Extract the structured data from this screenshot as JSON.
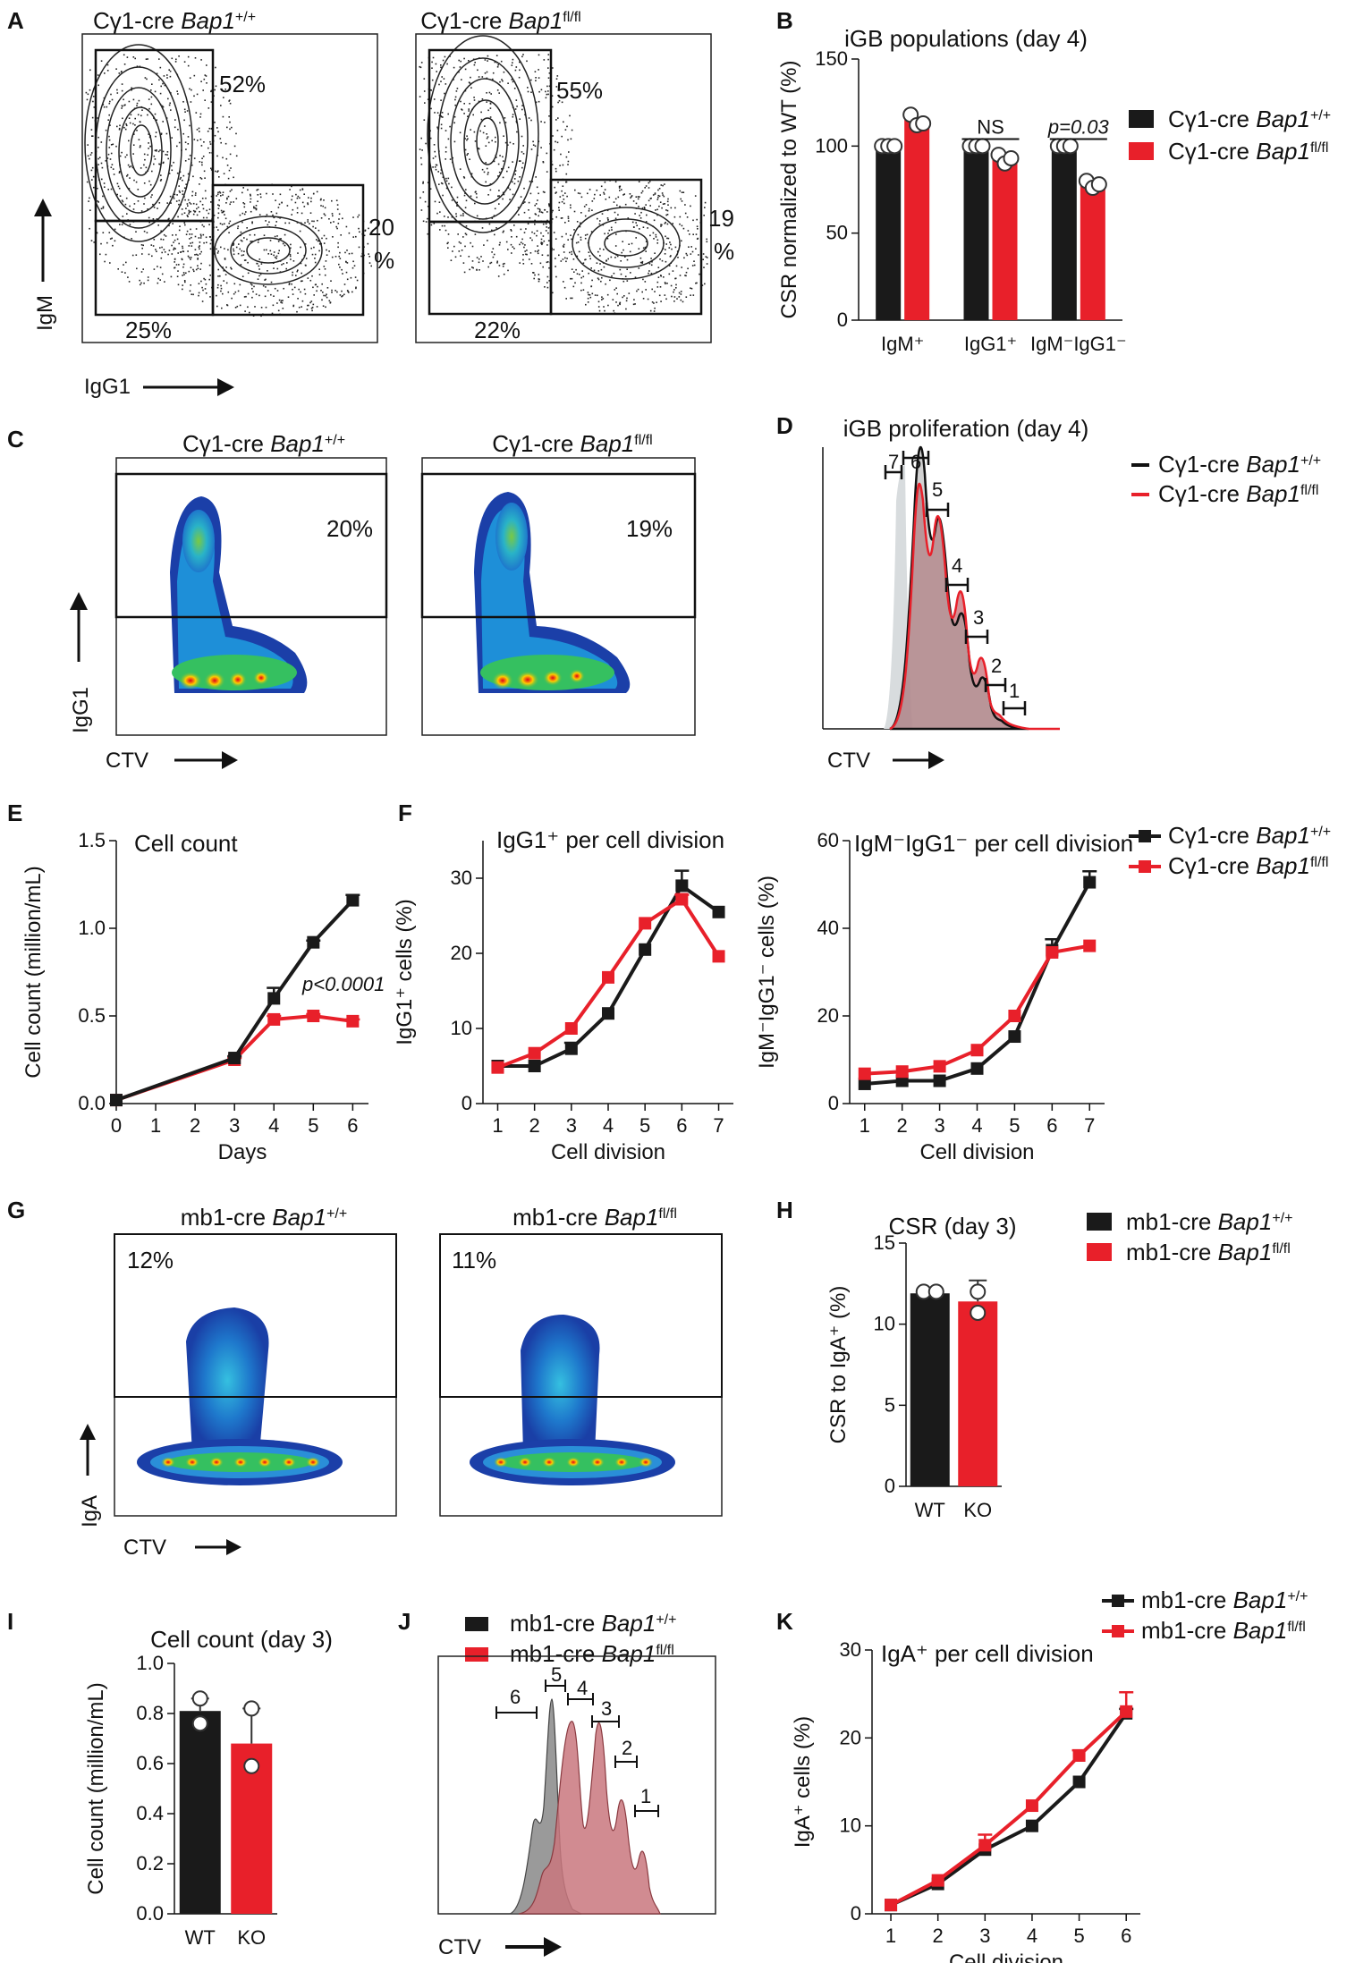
{
  "colors": {
    "wt": "#1a1a1a",
    "ko": "#e8202a",
    "wt_fill": "#9a9a9a",
    "ko_fill": "#c9777e"
  },
  "panels": {
    "A": {
      "label": "A",
      "title_wt_prefix": "Cγ1-cre ",
      "title_wt_gene": "Bap1",
      "title_wt_sup": "+/+",
      "title_ko_prefix": "Cγ1-cre ",
      "title_ko_gene": "Bap1",
      "title_ko_sup": "fl/fl",
      "ylabel": "IgM",
      "xlabel": "IgG1",
      "wt_gates": {
        "igm": "52%",
        "igg1_a": "20",
        "igg1_b": "%",
        "dn": "25%"
      },
      "ko_gates": {
        "igm": "55%",
        "igg1_a": "19",
        "igg1_b": "%",
        "dn": "22%"
      }
    },
    "C": {
      "label": "C",
      "title_wt_prefix": "Cγ1-cre ",
      "title_wt_gene": "Bap1",
      "title_wt_sup": "+/+",
      "title_ko_prefix": "Cγ1-cre ",
      "title_ko_gene": "Bap1",
      "title_ko_sup": "fl/fl",
      "ylabel": "IgG1",
      "xlabel": "CTV",
      "wt_pct": "20%",
      "ko_pct": "19%"
    },
    "D": {
      "label": "D",
      "title": "iGB proliferation (day 4)",
      "xlabel": "CTV",
      "legend": [
        {
          "prefix": "Cγ1-cre ",
          "gene": "Bap1",
          "sup": "+/+"
        },
        {
          "prefix": "Cγ1-cre ",
          "gene": "Bap1",
          "sup": "fl/fl"
        }
      ],
      "division_labels": [
        "7",
        "6",
        "5",
        "4",
        "3",
        "2",
        "1"
      ]
    },
    "G": {
      "label": "G",
      "title_wt_prefix": "mb1-cre ",
      "title_wt_gene": "Bap1",
      "title_wt_sup": "+/+",
      "title_ko_prefix": "mb1-cre ",
      "title_ko_gene": "Bap1",
      "title_ko_sup": "fl/fl",
      "ylabel": "IgA",
      "xlabel": "CTV",
      "wt_pct": "12%",
      "ko_pct": "11%"
    },
    "J": {
      "label": "J",
      "xlabel": "CTV",
      "legend": [
        {
          "prefix": "mb1-cre ",
          "gene": "Bap1",
          "sup": "+/+"
        },
        {
          "prefix": "mb1-cre ",
          "gene": "Bap1",
          "sup": "fl/fl"
        }
      ],
      "division_labels": [
        "6",
        "5",
        "4",
        "3",
        "2",
        "1"
      ]
    }
  },
  "chart_data": [
    {
      "id": "B",
      "label": "B",
      "type": "bar",
      "title": "iGB populations (day 4)",
      "ylabel": "CSR normalized to WT (%)",
      "categories": [
        "IgM⁺",
        "IgG1⁺",
        "IgM⁻IgG1⁻"
      ],
      "ylim": [
        0,
        150
      ],
      "yticks": [
        0,
        50,
        100,
        150
      ],
      "series": [
        {
          "name": "Cγ1-cre Bap1+/+",
          "values": [
            100,
            100,
            100
          ],
          "points": [
            [
              100,
              100,
              100
            ],
            [
              100,
              100,
              100
            ],
            [
              100,
              100,
              100
            ]
          ]
        },
        {
          "name": "Cγ1-cre Bap1fl/fl",
          "values": [
            115,
            92,
            78
          ],
          "points": [
            [
              118,
              112,
              113
            ],
            [
              95,
              90,
              93
            ],
            [
              80,
              76,
              78
            ]
          ]
        }
      ],
      "annotations": [
        "NS",
        "p=0.03"
      ],
      "legend_prefix": "Cγ1-cre ",
      "legend_gene": "Bap1",
      "legend_sups": [
        "+/+",
        "fl/fl"
      ]
    },
    {
      "id": "E",
      "label": "E",
      "type": "line",
      "title": "Cell count",
      "xlabel": "Days",
      "ylabel": "Cell count (million/mL)",
      "x": [
        0,
        3,
        4,
        5,
        6
      ],
      "xlim": [
        0,
        6.4
      ],
      "xticks": [
        0,
        1,
        2,
        3,
        4,
        5,
        6
      ],
      "ylim": [
        0,
        1.5
      ],
      "yticks": [
        0.0,
        0.5,
        1.0,
        1.5
      ],
      "series": [
        {
          "name": "Cγ1-cre Bap1+/+",
          "values": [
            0.02,
            0.26,
            0.6,
            0.92,
            1.16
          ],
          "err": [
            0,
            0.01,
            0.06,
            0.01,
            0.03
          ]
        },
        {
          "name": "Cγ1-cre Bap1fl/fl",
          "values": [
            0.02,
            0.25,
            0.48,
            0.5,
            0.47
          ],
          "err": [
            0,
            0.01,
            0.02,
            0.01,
            0.01
          ]
        }
      ],
      "annotation": "p<0.0001"
    },
    {
      "id": "F1",
      "label": "F",
      "type": "line",
      "title": "IgG1⁺ per cell division",
      "xlabel": "Cell division",
      "ylabel": "IgG1⁺ cells (%)",
      "x": [
        1,
        2,
        3,
        4,
        5,
        6,
        7
      ],
      "xlim": [
        0.6,
        7.4
      ],
      "xticks": [
        1,
        2,
        3,
        4,
        5,
        6,
        7
      ],
      "ylim": [
        0,
        35
      ],
      "yticks": [
        0,
        10,
        20,
        30
      ],
      "series": [
        {
          "name": "Cγ1-cre Bap1+/+",
          "values": [
            5,
            5,
            7.3,
            12,
            20.5,
            29,
            25.5
          ],
          "err": [
            0,
            0,
            0.8,
            0,
            0,
            2,
            0
          ]
        },
        {
          "name": "Cγ1-cre Bap1fl/fl",
          "values": [
            4.8,
            6.7,
            10,
            16.8,
            24,
            27.2,
            19.6
          ],
          "err": [
            0,
            0,
            0,
            0,
            0,
            0.6,
            0
          ]
        }
      ]
    },
    {
      "id": "F2",
      "label": "",
      "type": "line",
      "title": "IgM⁻IgG1⁻ per cell division",
      "xlabel": "Cell division",
      "ylabel": "IgM⁻IgG1⁻ cells (%)",
      "x": [
        1,
        2,
        3,
        4,
        5,
        6,
        7
      ],
      "xlim": [
        0.6,
        7.4
      ],
      "xticks": [
        1,
        2,
        3,
        4,
        5,
        6,
        7
      ],
      "ylim": [
        0,
        60
      ],
      "yticks": [
        0,
        20,
        40,
        60
      ],
      "series": [
        {
          "name": "Cγ1-cre Bap1+/+",
          "values": [
            4.5,
            5.2,
            5.2,
            8,
            15.3,
            35,
            50.5
          ],
          "err": [
            0,
            0,
            0,
            0,
            0,
            2.5,
            2.5
          ]
        },
        {
          "name": "Cγ1-cre Bap1fl/fl",
          "values": [
            6.8,
            7.3,
            8.5,
            12.2,
            20,
            34.5,
            36
          ],
          "err": [
            0,
            0,
            0,
            0,
            0,
            0,
            0
          ]
        }
      ],
      "legend_prefix": "Cγ1-cre ",
      "legend_gene": "Bap1",
      "legend_sups": [
        "+/+",
        "fl/fl"
      ]
    },
    {
      "id": "H",
      "label": "H",
      "type": "bar",
      "title": "CSR (day 3)",
      "ylabel": "CSR to IgA⁺ (%)",
      "categories": [
        "WT",
        "KO"
      ],
      "ylim": [
        0,
        15
      ],
      "yticks": [
        0,
        5,
        10,
        15
      ],
      "values": [
        11.9,
        11.4
      ],
      "err": [
        0.1,
        1.3
      ],
      "points": [
        [
          12,
          12
        ],
        [
          12,
          10.7
        ]
      ],
      "legend_prefix": "mb1-cre ",
      "legend_gene": "Bap1",
      "legend_sups": [
        "+/+",
        "fl/fl"
      ]
    },
    {
      "id": "I",
      "label": "I",
      "type": "bar",
      "title": "Cell count (day 3)",
      "ylabel": "Cell count (million/mL)",
      "categories": [
        "WT",
        "KO"
      ],
      "ylim": [
        0,
        1.0
      ],
      "yticks": [
        0.0,
        0.2,
        0.4,
        0.6,
        0.8,
        1.0
      ],
      "values": [
        0.81,
        0.68
      ],
      "err": [
        0.05,
        0.14
      ],
      "points": [
        [
          0.86,
          0.76
        ],
        [
          0.82,
          0.59
        ]
      ]
    },
    {
      "id": "K",
      "label": "K",
      "type": "line",
      "title": "IgA⁺ per cell division",
      "xlabel": "Cell division",
      "ylabel": "IgA⁺ cells (%)",
      "x": [
        1,
        2,
        3,
        4,
        5,
        6
      ],
      "xlim": [
        0.6,
        6.3
      ],
      "xticks": [
        1,
        2,
        3,
        4,
        5,
        6
      ],
      "ylim": [
        0,
        30
      ],
      "yticks": [
        0,
        10,
        20,
        30
      ],
      "series": [
        {
          "name": "mb1-cre Bap1+/+",
          "values": [
            1,
            3.4,
            7.3,
            10,
            15,
            22.8
          ],
          "err": [
            0,
            0,
            0,
            0,
            0,
            0.5
          ]
        },
        {
          "name": "mb1-cre Bap1fl/fl",
          "values": [
            1,
            3.8,
            7.8,
            12.3,
            18,
            23
          ],
          "err": [
            0,
            0,
            1.2,
            0,
            0.6,
            2.2
          ]
        }
      ],
      "legend_prefix": "mb1-cre ",
      "legend_gene": "Bap1",
      "legend_sups": [
        "+/+",
        "fl/fl"
      ]
    }
  ]
}
